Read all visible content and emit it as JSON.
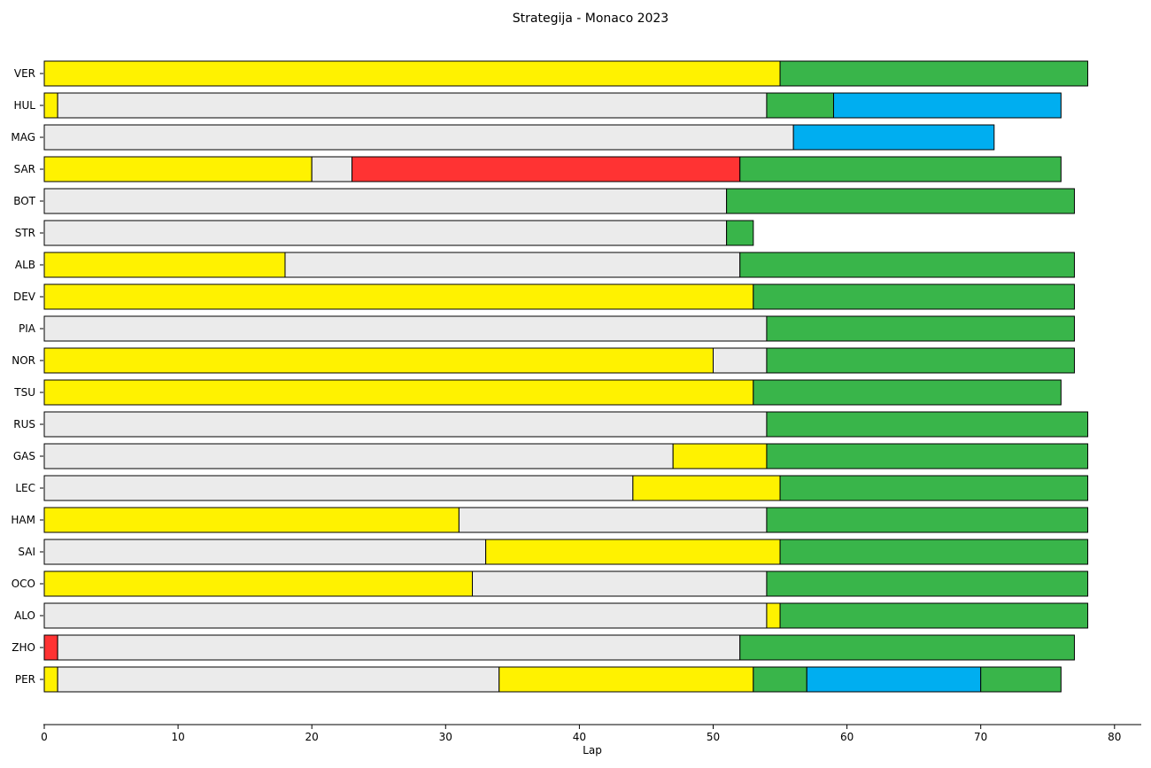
{
  "chart_data": {
    "type": "bar",
    "orientation": "horizontal-stacked",
    "title": "Strategija - Monaco 2023",
    "xlabel": "Lap",
    "ylabel": "",
    "xlim": [
      0,
      82
    ],
    "xticks": [
      0,
      10,
      20,
      30,
      40,
      50,
      60,
      70,
      80
    ],
    "grid": false,
    "compound_colors": {
      "SOFT": "#ff3333",
      "MEDIUM": "#fff200",
      "HARD": "#ebebeb",
      "INTERMEDIATE": "#39b54a",
      "WET": "#00aef0"
    },
    "drivers": [
      {
        "driver": "VER",
        "stints": [
          {
            "compound": "MEDIUM",
            "start": 0,
            "end": 55
          },
          {
            "compound": "INTERMEDIATE",
            "start": 55,
            "end": 78
          }
        ]
      },
      {
        "driver": "HUL",
        "stints": [
          {
            "compound": "MEDIUM",
            "start": 0,
            "end": 1
          },
          {
            "compound": "HARD",
            "start": 1,
            "end": 54
          },
          {
            "compound": "INTERMEDIATE",
            "start": 54,
            "end": 59
          },
          {
            "compound": "WET",
            "start": 59,
            "end": 76
          }
        ]
      },
      {
        "driver": "MAG",
        "stints": [
          {
            "compound": "HARD",
            "start": 0,
            "end": 56
          },
          {
            "compound": "WET",
            "start": 56,
            "end": 71
          }
        ]
      },
      {
        "driver": "SAR",
        "stints": [
          {
            "compound": "MEDIUM",
            "start": 0,
            "end": 20
          },
          {
            "compound": "HARD",
            "start": 20,
            "end": 23
          },
          {
            "compound": "SOFT",
            "start": 23,
            "end": 52
          },
          {
            "compound": "INTERMEDIATE",
            "start": 52,
            "end": 76
          }
        ]
      },
      {
        "driver": "BOT",
        "stints": [
          {
            "compound": "HARD",
            "start": 0,
            "end": 51
          },
          {
            "compound": "INTERMEDIATE",
            "start": 51,
            "end": 77
          }
        ]
      },
      {
        "driver": "STR",
        "stints": [
          {
            "compound": "HARD",
            "start": 0,
            "end": 51
          },
          {
            "compound": "INTERMEDIATE",
            "start": 51,
            "end": 53
          }
        ]
      },
      {
        "driver": "ALB",
        "stints": [
          {
            "compound": "MEDIUM",
            "start": 0,
            "end": 18
          },
          {
            "compound": "HARD",
            "start": 18,
            "end": 52
          },
          {
            "compound": "INTERMEDIATE",
            "start": 52,
            "end": 77
          }
        ]
      },
      {
        "driver": "DEV",
        "stints": [
          {
            "compound": "MEDIUM",
            "start": 0,
            "end": 53
          },
          {
            "compound": "INTERMEDIATE",
            "start": 53,
            "end": 77
          }
        ]
      },
      {
        "driver": "PIA",
        "stints": [
          {
            "compound": "HARD",
            "start": 0,
            "end": 54
          },
          {
            "compound": "INTERMEDIATE",
            "start": 54,
            "end": 77
          }
        ]
      },
      {
        "driver": "NOR",
        "stints": [
          {
            "compound": "MEDIUM",
            "start": 0,
            "end": 50
          },
          {
            "compound": "HARD",
            "start": 50,
            "end": 54
          },
          {
            "compound": "INTERMEDIATE",
            "start": 54,
            "end": 77
          }
        ]
      },
      {
        "driver": "TSU",
        "stints": [
          {
            "compound": "MEDIUM",
            "start": 0,
            "end": 53
          },
          {
            "compound": "INTERMEDIATE",
            "start": 53,
            "end": 76
          }
        ]
      },
      {
        "driver": "RUS",
        "stints": [
          {
            "compound": "HARD",
            "start": 0,
            "end": 54
          },
          {
            "compound": "INTERMEDIATE",
            "start": 54,
            "end": 78
          }
        ]
      },
      {
        "driver": "GAS",
        "stints": [
          {
            "compound": "HARD",
            "start": 0,
            "end": 47
          },
          {
            "compound": "MEDIUM",
            "start": 47,
            "end": 54
          },
          {
            "compound": "INTERMEDIATE",
            "start": 54,
            "end": 78
          }
        ]
      },
      {
        "driver": "LEC",
        "stints": [
          {
            "compound": "HARD",
            "start": 0,
            "end": 44
          },
          {
            "compound": "MEDIUM",
            "start": 44,
            "end": 55
          },
          {
            "compound": "INTERMEDIATE",
            "start": 55,
            "end": 78
          }
        ]
      },
      {
        "driver": "HAM",
        "stints": [
          {
            "compound": "MEDIUM",
            "start": 0,
            "end": 31
          },
          {
            "compound": "HARD",
            "start": 31,
            "end": 54
          },
          {
            "compound": "INTERMEDIATE",
            "start": 54,
            "end": 78
          }
        ]
      },
      {
        "driver": "SAI",
        "stints": [
          {
            "compound": "HARD",
            "start": 0,
            "end": 33
          },
          {
            "compound": "MEDIUM",
            "start": 33,
            "end": 55
          },
          {
            "compound": "INTERMEDIATE",
            "start": 55,
            "end": 78
          }
        ]
      },
      {
        "driver": "OCO",
        "stints": [
          {
            "compound": "MEDIUM",
            "start": 0,
            "end": 32
          },
          {
            "compound": "HARD",
            "start": 32,
            "end": 54
          },
          {
            "compound": "INTERMEDIATE",
            "start": 54,
            "end": 78
          }
        ]
      },
      {
        "driver": "ALO",
        "stints": [
          {
            "compound": "HARD",
            "start": 0,
            "end": 54
          },
          {
            "compound": "MEDIUM",
            "start": 54,
            "end": 55
          },
          {
            "compound": "INTERMEDIATE",
            "start": 55,
            "end": 78
          }
        ]
      },
      {
        "driver": "ZHO",
        "stints": [
          {
            "compound": "SOFT",
            "start": 0,
            "end": 1
          },
          {
            "compound": "HARD",
            "start": 1,
            "end": 52
          },
          {
            "compound": "INTERMEDIATE",
            "start": 52,
            "end": 77
          }
        ]
      },
      {
        "driver": "PER",
        "stints": [
          {
            "compound": "MEDIUM",
            "start": 0,
            "end": 1
          },
          {
            "compound": "HARD",
            "start": 1,
            "end": 34
          },
          {
            "compound": "MEDIUM",
            "start": 34,
            "end": 53
          },
          {
            "compound": "INTERMEDIATE",
            "start": 53,
            "end": 57
          },
          {
            "compound": "WET",
            "start": 57,
            "end": 70
          },
          {
            "compound": "INTERMEDIATE",
            "start": 70,
            "end": 76
          }
        ]
      }
    ]
  }
}
